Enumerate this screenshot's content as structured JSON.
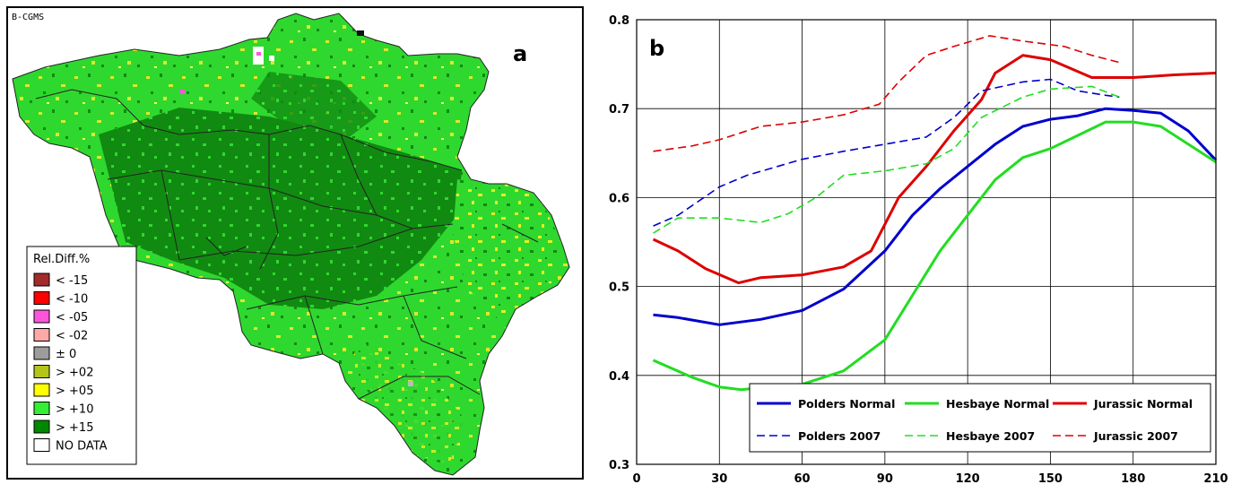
{
  "map": {
    "panel_label": "a",
    "source_label": "B-CGMS",
    "legend": {
      "title": "Rel.Diff.%",
      "items": [
        {
          "label": "< -15",
          "color": "#a52a2a"
        },
        {
          "label": "< -10",
          "color": "#ff0000"
        },
        {
          "label": "< -05",
          "color": "#ff55dd"
        },
        {
          "label": "< -02",
          "color": "#ffa8a8"
        },
        {
          "label": "± 0",
          "color": "#9c9c9c"
        },
        {
          "label": "> +02",
          "color": "#b5c419"
        },
        {
          "label": "> +05",
          "color": "#ffff00"
        },
        {
          "label": "> +10",
          "color": "#33ee33"
        },
        {
          "label": "> +15",
          "color": "#008800"
        },
        {
          "label": "NO DATA",
          "color": "#ffffff"
        }
      ]
    }
  },
  "chart_data": {
    "type": "line",
    "panel_label": "b",
    "xlim": [
      0,
      210
    ],
    "ylim": [
      0.3,
      0.8
    ],
    "xticks": [
      "0",
      "30",
      "60",
      "90",
      "120",
      "150",
      "180",
      "210"
    ],
    "yticks": [
      "0.3",
      "0.4",
      "0.5",
      "0.6",
      "0.7",
      "0.8"
    ],
    "grid": true,
    "legend_position": "bottom-right",
    "series": [
      {
        "name": "Polders Normal",
        "color": "#0000cc",
        "dash": "solid",
        "points": [
          [
            6,
            0.468
          ],
          [
            15,
            0.465
          ],
          [
            30,
            0.457
          ],
          [
            45,
            0.463
          ],
          [
            60,
            0.473
          ],
          [
            75,
            0.497
          ],
          [
            90,
            0.54
          ],
          [
            100,
            0.58
          ],
          [
            110,
            0.61
          ],
          [
            120,
            0.635
          ],
          [
            130,
            0.66
          ],
          [
            140,
            0.68
          ],
          [
            150,
            0.688
          ],
          [
            160,
            0.692
          ],
          [
            170,
            0.7
          ],
          [
            180,
            0.698
          ],
          [
            190,
            0.695
          ],
          [
            200,
            0.675
          ],
          [
            210,
            0.642
          ]
        ]
      },
      {
        "name": "Hesbaye Normal",
        "color": "#22dd22",
        "dash": "solid",
        "points": [
          [
            6,
            0.417
          ],
          [
            20,
            0.398
          ],
          [
            30,
            0.387
          ],
          [
            38,
            0.384
          ],
          [
            50,
            0.388
          ],
          [
            60,
            0.39
          ],
          [
            75,
            0.405
          ],
          [
            90,
            0.44
          ],
          [
            100,
            0.49
          ],
          [
            110,
            0.54
          ],
          [
            120,
            0.58
          ],
          [
            130,
            0.62
          ],
          [
            140,
            0.645
          ],
          [
            150,
            0.655
          ],
          [
            160,
            0.67
          ],
          [
            170,
            0.685
          ],
          [
            180,
            0.685
          ],
          [
            190,
            0.68
          ],
          [
            200,
            0.66
          ],
          [
            210,
            0.64
          ]
        ]
      },
      {
        "name": "Jurassic Normal",
        "color": "#dd0000",
        "dash": "solid",
        "points": [
          [
            6,
            0.553
          ],
          [
            15,
            0.54
          ],
          [
            25,
            0.52
          ],
          [
            37,
            0.504
          ],
          [
            45,
            0.51
          ],
          [
            55,
            0.512
          ],
          [
            60,
            0.513
          ],
          [
            75,
            0.522
          ],
          [
            85,
            0.54
          ],
          [
            90,
            0.57
          ],
          [
            95,
            0.6
          ],
          [
            105,
            0.635
          ],
          [
            115,
            0.675
          ],
          [
            125,
            0.71
          ],
          [
            130,
            0.74
          ],
          [
            140,
            0.76
          ],
          [
            150,
            0.755
          ],
          [
            165,
            0.735
          ],
          [
            180,
            0.735
          ],
          [
            195,
            0.738
          ],
          [
            210,
            0.74
          ]
        ]
      },
      {
        "name": "Polders 2007",
        "color": "#0000cc",
        "dash": "dashed",
        "points": [
          [
            6,
            0.568
          ],
          [
            15,
            0.58
          ],
          [
            30,
            0.612
          ],
          [
            40,
            0.625
          ],
          [
            60,
            0.643
          ],
          [
            75,
            0.652
          ],
          [
            90,
            0.66
          ],
          [
            105,
            0.668
          ],
          [
            115,
            0.69
          ],
          [
            125,
            0.72
          ],
          [
            140,
            0.73
          ],
          [
            150,
            0.733
          ],
          [
            160,
            0.72
          ],
          [
            170,
            0.715
          ],
          [
            175,
            0.713
          ]
        ]
      },
      {
        "name": "Hesbaye 2007",
        "color": "#22dd22",
        "dash": "dashed",
        "points": [
          [
            6,
            0.56
          ],
          [
            15,
            0.577
          ],
          [
            30,
            0.577
          ],
          [
            45,
            0.572
          ],
          [
            55,
            0.582
          ],
          [
            65,
            0.6
          ],
          [
            75,
            0.625
          ],
          [
            90,
            0.63
          ],
          [
            105,
            0.638
          ],
          [
            115,
            0.655
          ],
          [
            125,
            0.69
          ],
          [
            140,
            0.713
          ],
          [
            150,
            0.722
          ],
          [
            165,
            0.725
          ],
          [
            175,
            0.713
          ]
        ]
      },
      {
        "name": "Jurassic 2007",
        "color": "#dd0000",
        "dash": "dashed",
        "points": [
          [
            6,
            0.652
          ],
          [
            20,
            0.658
          ],
          [
            30,
            0.665
          ],
          [
            45,
            0.68
          ],
          [
            60,
            0.685
          ],
          [
            75,
            0.693
          ],
          [
            88,
            0.705
          ],
          [
            95,
            0.73
          ],
          [
            105,
            0.76
          ],
          [
            115,
            0.77
          ],
          [
            128,
            0.782
          ],
          [
            140,
            0.776
          ],
          [
            155,
            0.77
          ],
          [
            165,
            0.76
          ],
          [
            175,
            0.752
          ]
        ]
      }
    ]
  }
}
